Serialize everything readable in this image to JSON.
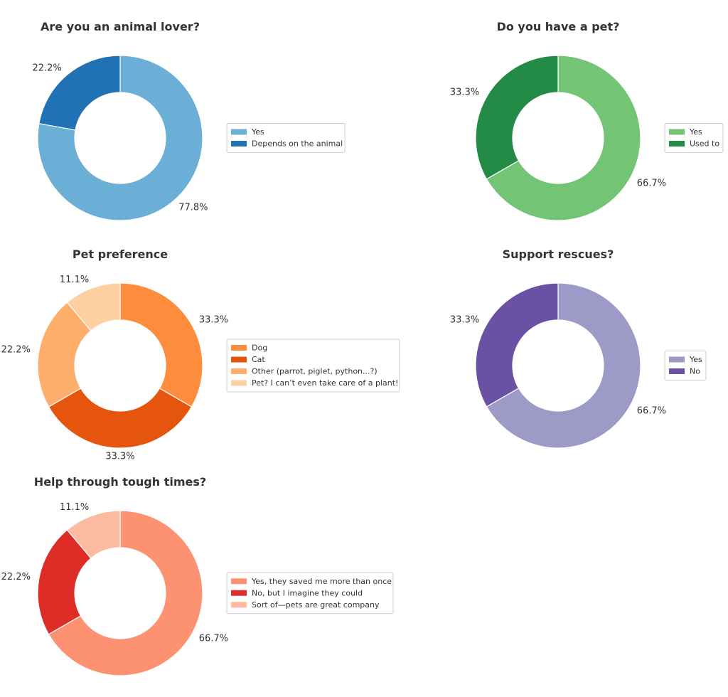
{
  "chart_data": [
    {
      "type": "pie",
      "title": "Are you an animal lover?",
      "categories": [
        "Yes",
        "Depends on the animal"
      ],
      "values": [
        77.8,
        22.2
      ],
      "labels": [
        "77.8%",
        "22.2%"
      ],
      "colors": [
        "#6baed6",
        "#2171b5"
      ],
      "legend": "right",
      "donut": true
    },
    {
      "type": "pie",
      "title": "Do you have a pet?",
      "categories": [
        "Yes",
        "Used to"
      ],
      "values": [
        66.7,
        33.3
      ],
      "labels": [
        "66.7%",
        "33.3%"
      ],
      "colors": [
        "#74c476",
        "#238b45"
      ],
      "legend": "right",
      "donut": true
    },
    {
      "type": "pie",
      "title": "Pet preference",
      "categories": [
        "Dog",
        "Cat",
        "Other (parrot, piglet, python...?)",
        "Pet? I can’t even take care of a plant!"
      ],
      "values": [
        33.3,
        33.3,
        22.2,
        11.1
      ],
      "labels": [
        "33.3%",
        "33.3%",
        "22.2%",
        "11.1%"
      ],
      "colors": [
        "#fd8d3c",
        "#e6550d",
        "#fdae6b",
        "#fdd0a2"
      ],
      "legend": "right",
      "donut": true
    },
    {
      "type": "pie",
      "title": "Support rescues?",
      "categories": [
        "Yes",
        "No"
      ],
      "values": [
        66.7,
        33.3
      ],
      "labels": [
        "66.7%",
        "33.3%"
      ],
      "colors": [
        "#9e9ac8",
        "#6a51a3"
      ],
      "legend": "right",
      "donut": true
    },
    {
      "type": "pie",
      "title": "Help through tough times?",
      "categories": [
        "Yes, they saved me more than once",
        "No, but I imagine they could",
        "Sort of—pets are great company"
      ],
      "values": [
        66.7,
        22.2,
        11.1
      ],
      "labels": [
        "66.7%",
        "22.2%",
        "11.1%"
      ],
      "colors": [
        "#fc9272",
        "#de2d26",
        "#fcbba1"
      ],
      "legend": "right",
      "donut": true
    }
  ]
}
